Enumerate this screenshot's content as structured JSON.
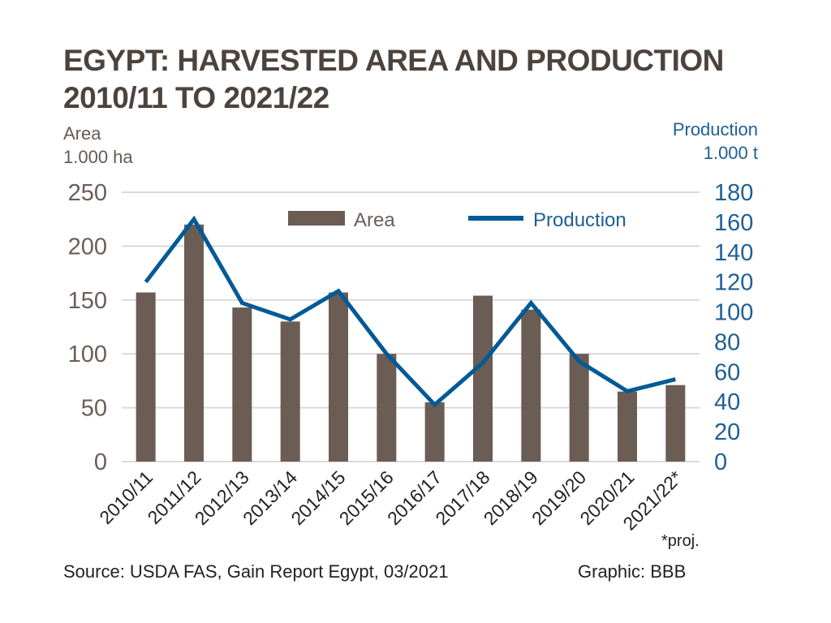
{
  "chart_data": {
    "type": "bar",
    "title": "EGYPT: HARVESTED AREA AND PRODUCTION",
    "subtitle": "2010/11 TO 2021/22",
    "categories": [
      "2010/11",
      "2011/12",
      "2012/13",
      "2013/14",
      "2014/15",
      "2015/16",
      "2016/17",
      "2017/18",
      "2018/19",
      "2019/20",
      "2020/21",
      "2021/22*"
    ],
    "series": [
      {
        "name": "Area",
        "type": "bar",
        "axis": "left",
        "color": "#6b5c54",
        "values": [
          157,
          220,
          143,
          130,
          157,
          100,
          55,
          154,
          141,
          100,
          65,
          71
        ]
      },
      {
        "name": "Production",
        "type": "line",
        "axis": "right",
        "color": "#005a96",
        "values": [
          120,
          162,
          106,
          95,
          114,
          72,
          38,
          66,
          106,
          67,
          47,
          55
        ]
      }
    ],
    "left_axis": {
      "label_line1": "Area",
      "label_line2": "1.000 ha",
      "ylim": [
        0,
        250
      ],
      "ticks": [
        0,
        50,
        100,
        150,
        200,
        250
      ]
    },
    "right_axis": {
      "label_line1": "Production",
      "label_line2": "1.000 t",
      "ylim": [
        0,
        180
      ],
      "ticks": [
        0,
        20,
        40,
        60,
        80,
        100,
        120,
        140,
        160,
        180
      ]
    },
    "grid": true,
    "legend_placement": "top-center",
    "footnote": "*proj.",
    "source": "Source: USDA FAS, Gain Report Egypt, 03/2021",
    "credit": "Graphic: BBB"
  }
}
